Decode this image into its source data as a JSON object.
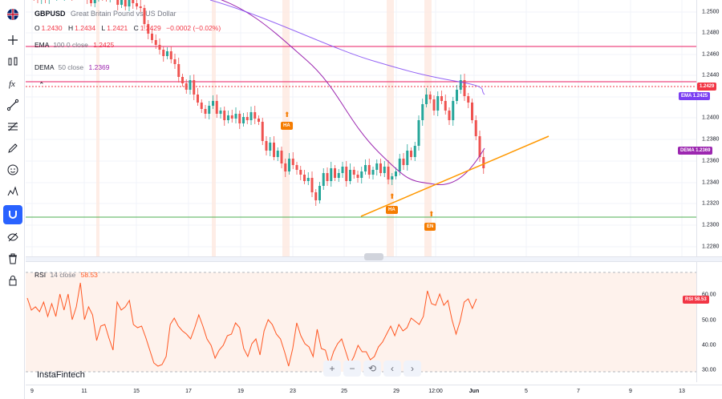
{
  "toolbar": {
    "items": [
      {
        "icon": "flag-icon"
      },
      {
        "icon": "crosshair-icon"
      },
      {
        "icon": "chart-type-icon"
      },
      {
        "icon": "indicators-icon"
      },
      {
        "icon": "trend-line-icon"
      },
      {
        "icon": "fib-icon"
      },
      {
        "icon": "brush-icon"
      },
      {
        "icon": "emoji-icon"
      },
      {
        "icon": "patterns-icon"
      },
      {
        "icon": "magnet-icon",
        "active": true
      },
      {
        "icon": "hide-drawings-icon"
      },
      {
        "icon": "trash-icon"
      },
      {
        "icon": "lock-icon"
      }
    ]
  },
  "legend": {
    "symbol": "GBPUSD",
    "description": "Great Britain Pound vs US Dollar",
    "open_label": "O",
    "open": "1.2430",
    "high_label": "H",
    "high": "1.2434",
    "low_label": "L",
    "low": "1.2421",
    "close_label": "C",
    "close": "1.2429",
    "change": "−0.0002 (−0.02%)",
    "ema_label": "EMA",
    "ema_params": "100 0 close",
    "ema_value": "1.2425",
    "dema_label": "DEMA",
    "dema_params": "50 close",
    "dema_value": "1.2369",
    "rsi_label": "RSI",
    "rsi_params": "14 close",
    "rsi_value": "58.53"
  },
  "price_axis": {
    "ticks": [
      "1.2500",
      "1.2480",
      "1.2460",
      "1.2440",
      "1.2400",
      "1.2380",
      "1.2360",
      "1.2340",
      "1.2320",
      "1.2300",
      "1.2280"
    ],
    "badges": [
      {
        "label": "",
        "value": "1.2429",
        "color": "#f23645"
      },
      {
        "label": "EMA",
        "value": "1.2425",
        "color": "#7b3ff2"
      },
      {
        "label": "DEMA",
        "value": "1.2369",
        "color": "#9c27b0"
      }
    ]
  },
  "rsi_axis": {
    "ticks": [
      "60.00",
      "50.00",
      "40.00",
      "30.00"
    ],
    "badge": {
      "label": "RSI",
      "value": "58.53",
      "color": "#f23645"
    }
  },
  "time_axis": {
    "ticks": [
      "9",
      "11",
      "15",
      "17",
      "19",
      "23",
      "25",
      "29",
      "12:00",
      "Jun",
      "5",
      "7",
      "9",
      "13"
    ]
  },
  "signals": [
    {
      "label": "HA"
    },
    {
      "label": "HA"
    },
    {
      "label": "EN"
    }
  ],
  "zoom_controls": {
    "zoom_in": "+",
    "zoom_out": "−",
    "reset": "⟲",
    "left": "‹",
    "right": "›"
  },
  "watermark": "InstaFintech",
  "colors": {
    "up": "#26a69a",
    "down": "#ef5350",
    "ema": "#7b3ff2",
    "dema": "#9c27b0",
    "rsi": "#ff5722",
    "resistance": "#e91e63",
    "support": "#4caf50",
    "trend": "#ff9800"
  }
}
